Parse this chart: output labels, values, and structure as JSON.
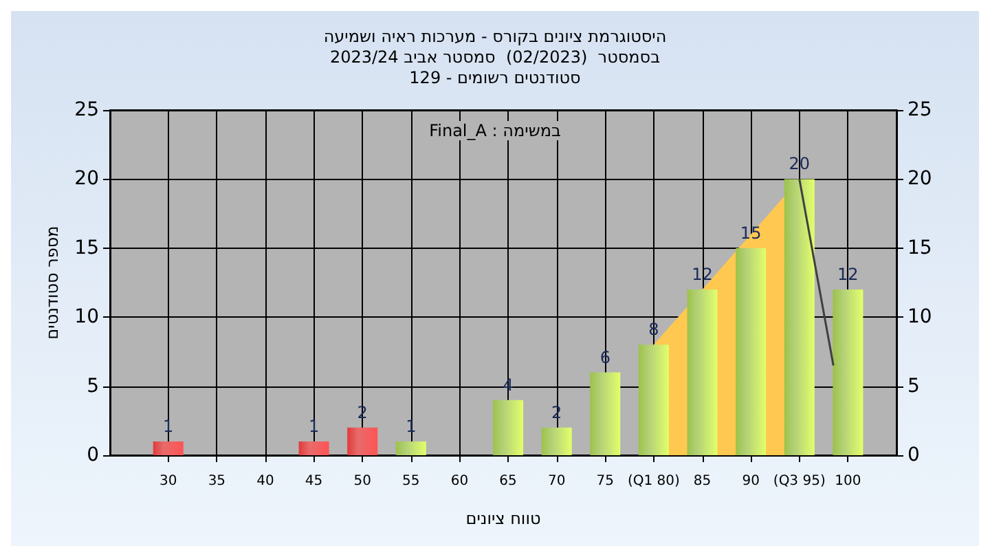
{
  "chart_data": {
    "type": "bar",
    "title": "היסטוגרמת ציונים בקורס - מערכות ראיה ושמיעה",
    "subtitle": "בסמסטר  (02/2023)  סמסטר אביב 2023/24\nסטודנטים רשומים - 129",
    "xlabel": "טווח ציונים",
    "ylabel": "מספר סטודנטים",
    "annotations": [
      "Final_A : במשימה"
    ],
    "series": [
      {
        "type": "area",
        "color": "#ffc850",
        "x": [
          80,
          95
        ],
        "values": [
          8,
          20
        ]
      },
      {
        "type": "line",
        "color": "#404040",
        "x": [
          95,
          98.5
        ],
        "values": [
          20,
          6.5
        ]
      },
      {
        "type": "bar",
        "x": [
          30,
          45,
          50,
          55,
          65,
          70,
          75,
          80,
          85,
          90,
          95,
          100
        ],
        "values": [
          1,
          1,
          2,
          1,
          4,
          2,
          6,
          8,
          12,
          15,
          20,
          12
        ],
        "colors": [
          "#e03a3a",
          "#e03a3a",
          "#e03a3a",
          "#9cc24a",
          "#9cc24a",
          "#9cc24a",
          "#9cc24a",
          "#9cc24a",
          "#9cc24a",
          "#9cc24a",
          "#9cc24a",
          "#9cc24a"
        ],
        "data_labels": true
      }
    ],
    "xlim": [
      24,
      105
    ],
    "xticks": [
      30,
      35,
      40,
      45,
      50,
      55,
      60,
      65,
      70,
      75,
      {
        "value": 80,
        "label": "(Q1 80)"
      },
      85,
      90,
      {
        "value": 95,
        "label": "(Q3 95)"
      },
      100
    ],
    "ylim": [
      0,
      25
    ],
    "yticks": [
      0,
      5,
      10,
      15,
      20,
      25
    ],
    "y2lim": [
      0,
      25
    ],
    "y2ticks": [
      0,
      5,
      10,
      15,
      20,
      25
    ],
    "grid": true
  }
}
